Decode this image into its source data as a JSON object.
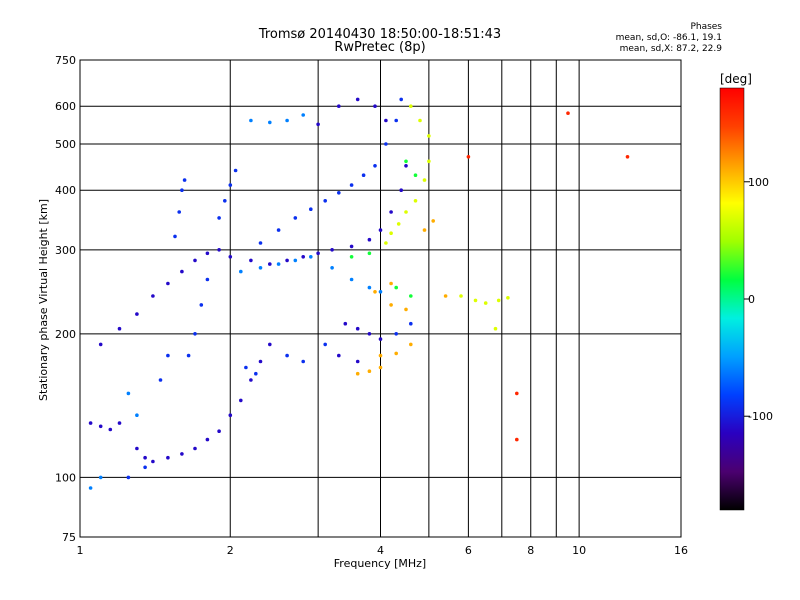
{
  "chart_data": {
    "type": "scatter",
    "title": "Tromsø 20140430 18:50:00-18:51:43",
    "subtitle": "RwPretec (8p)",
    "xlabel": "Frequency [MHz]",
    "ylabel": "Stationary phase Virtual Height [km]",
    "x_scale": "log",
    "y_scale": "log",
    "xlim": [
      1,
      16
    ],
    "ylim": [
      75,
      750
    ],
    "x_ticks": [
      1,
      2,
      4,
      6,
      8,
      10,
      16
    ],
    "x_tick_labels": [
      "1",
      "2",
      "4",
      "6",
      "8",
      "10",
      "16"
    ],
    "x_minor_gridlines": [
      3,
      5,
      7,
      9
    ],
    "y_ticks": [
      75,
      100,
      200,
      300,
      400,
      500,
      600,
      750
    ],
    "y_tick_labels": [
      "75",
      "100",
      "200",
      "300",
      "400",
      "500",
      "600",
      "750"
    ],
    "grid": true,
    "stats": {
      "heading": "Phases",
      "line_o": "mean, sd,O: -86.1, 19.1",
      "line_x": "mean, sd,X:  87.2, 22.9"
    },
    "colorbar": {
      "label": "[deg]",
      "range": [
        -180,
        180
      ],
      "ticks": [
        100,
        0,
        -100
      ],
      "tick_labels": [
        "100",
        "0",
        "-100"
      ],
      "colormap": [
        "#000000",
        "#4b0070",
        "#2a00c0",
        "#0040ff",
        "#00a0ff",
        "#00f0e0",
        "#00ff40",
        "#a0ff00",
        "#ffff00",
        "#ffa000",
        "#ff4000",
        "#ff0000"
      ]
    },
    "series": [
      {
        "value_deg": -110,
        "points": [
          [
            1.05,
            130
          ],
          [
            1.1,
            128
          ],
          [
            1.15,
            126
          ],
          [
            1.2,
            130
          ],
          [
            1.3,
            115
          ],
          [
            1.35,
            110
          ],
          [
            1.4,
            108
          ],
          [
            1.5,
            110
          ],
          [
            1.6,
            112
          ],
          [
            1.7,
            115
          ],
          [
            1.8,
            120
          ],
          [
            1.9,
            125
          ],
          [
            2.0,
            135
          ],
          [
            2.1,
            145
          ],
          [
            2.2,
            160
          ],
          [
            2.3,
            175
          ],
          [
            2.4,
            190
          ],
          [
            1.1,
            190
          ],
          [
            1.2,
            205
          ],
          [
            1.3,
            220
          ],
          [
            1.4,
            240
          ],
          [
            1.5,
            255
          ],
          [
            1.6,
            270
          ],
          [
            1.7,
            285
          ],
          [
            1.8,
            295
          ],
          [
            1.9,
            300
          ],
          [
            2.0,
            290
          ],
          [
            2.2,
            285
          ],
          [
            2.4,
            280
          ],
          [
            2.6,
            285
          ],
          [
            2.8,
            290
          ],
          [
            3.0,
            295
          ],
          [
            3.2,
            300
          ],
          [
            3.5,
            305
          ],
          [
            3.8,
            315
          ],
          [
            4.0,
            330
          ],
          [
            4.2,
            360
          ],
          [
            4.4,
            400
          ],
          [
            4.5,
            450
          ],
          [
            3.4,
            210
          ],
          [
            3.6,
            205
          ],
          [
            3.8,
            200
          ],
          [
            4.0,
            195
          ],
          [
            3.3,
            180
          ],
          [
            3.6,
            175
          ],
          [
            3.0,
            550
          ],
          [
            3.3,
            600
          ],
          [
            3.6,
            620
          ],
          [
            3.9,
            600
          ],
          [
            4.1,
            560
          ]
        ]
      },
      {
        "value_deg": -90,
        "points": [
          [
            1.55,
            320
          ],
          [
            1.58,
            360
          ],
          [
            1.6,
            400
          ],
          [
            1.62,
            420
          ],
          [
            1.9,
            350
          ],
          [
            1.95,
            380
          ],
          [
            2.0,
            410
          ],
          [
            2.05,
            440
          ],
          [
            1.7,
            200
          ],
          [
            1.75,
            230
          ],
          [
            1.8,
            260
          ],
          [
            1.5,
            180
          ],
          [
            1.45,
            160
          ],
          [
            2.3,
            310
          ],
          [
            2.5,
            330
          ],
          [
            2.7,
            350
          ],
          [
            2.9,
            365
          ],
          [
            3.1,
            380
          ],
          [
            3.3,
            395
          ],
          [
            3.5,
            410
          ],
          [
            3.7,
            430
          ],
          [
            3.9,
            450
          ],
          [
            4.1,
            500
          ],
          [
            4.3,
            560
          ],
          [
            4.4,
            620
          ],
          [
            2.6,
            180
          ],
          [
            2.8,
            175
          ],
          [
            3.1,
            190
          ],
          [
            4.3,
            200
          ],
          [
            4.6,
            210
          ],
          [
            1.25,
            100
          ],
          [
            1.35,
            105
          ],
          [
            1.65,
            180
          ],
          [
            2.15,
            170
          ],
          [
            2.25,
            165
          ]
        ]
      },
      {
        "value_deg": -60,
        "points": [
          [
            2.1,
            270
          ],
          [
            2.3,
            275
          ],
          [
            2.5,
            280
          ],
          [
            2.7,
            285
          ],
          [
            2.9,
            290
          ],
          [
            3.2,
            275
          ],
          [
            3.5,
            260
          ],
          [
            3.8,
            250
          ],
          [
            4.0,
            245
          ],
          [
            2.2,
            560
          ],
          [
            2.4,
            555
          ],
          [
            2.6,
            560
          ],
          [
            2.8,
            575
          ],
          [
            1.05,
            95
          ],
          [
            1.1,
            100
          ],
          [
            1.25,
            150
          ],
          [
            1.3,
            135
          ]
        ]
      },
      {
        "value_deg": 20,
        "points": [
          [
            3.5,
            290
          ],
          [
            3.8,
            295
          ],
          [
            4.5,
            460
          ],
          [
            4.7,
            430
          ],
          [
            4.3,
            250
          ],
          [
            4.6,
            240
          ]
        ]
      },
      {
        "value_deg": 70,
        "points": [
          [
            4.1,
            310
          ],
          [
            4.2,
            325
          ],
          [
            4.35,
            340
          ],
          [
            4.5,
            360
          ],
          [
            4.7,
            380
          ],
          [
            4.9,
            420
          ],
          [
            5.0,
            460
          ],
          [
            5.0,
            520
          ],
          [
            4.8,
            560
          ],
          [
            4.6,
            600
          ],
          [
            5.8,
            240
          ],
          [
            6.2,
            235
          ],
          [
            6.5,
            232
          ],
          [
            6.9,
            235
          ],
          [
            7.2,
            238
          ],
          [
            6.8,
            205
          ]
        ]
      },
      {
        "value_deg": 110,
        "points": [
          [
            3.6,
            165
          ],
          [
            3.8,
            167
          ],
          [
            4.0,
            170
          ],
          [
            4.0,
            180
          ],
          [
            4.3,
            182
          ],
          [
            4.6,
            190
          ],
          [
            4.2,
            230
          ],
          [
            4.5,
            225
          ],
          [
            4.9,
            330
          ],
          [
            5.1,
            345
          ],
          [
            3.9,
            245
          ],
          [
            4.2,
            255
          ],
          [
            5.4,
            240
          ]
        ]
      },
      {
        "value_deg": 160,
        "points": [
          [
            9.5,
            580
          ],
          [
            12.5,
            470
          ],
          [
            6.0,
            470
          ],
          [
            7.5,
            150
          ],
          [
            7.5,
            120
          ]
        ]
      }
    ]
  }
}
